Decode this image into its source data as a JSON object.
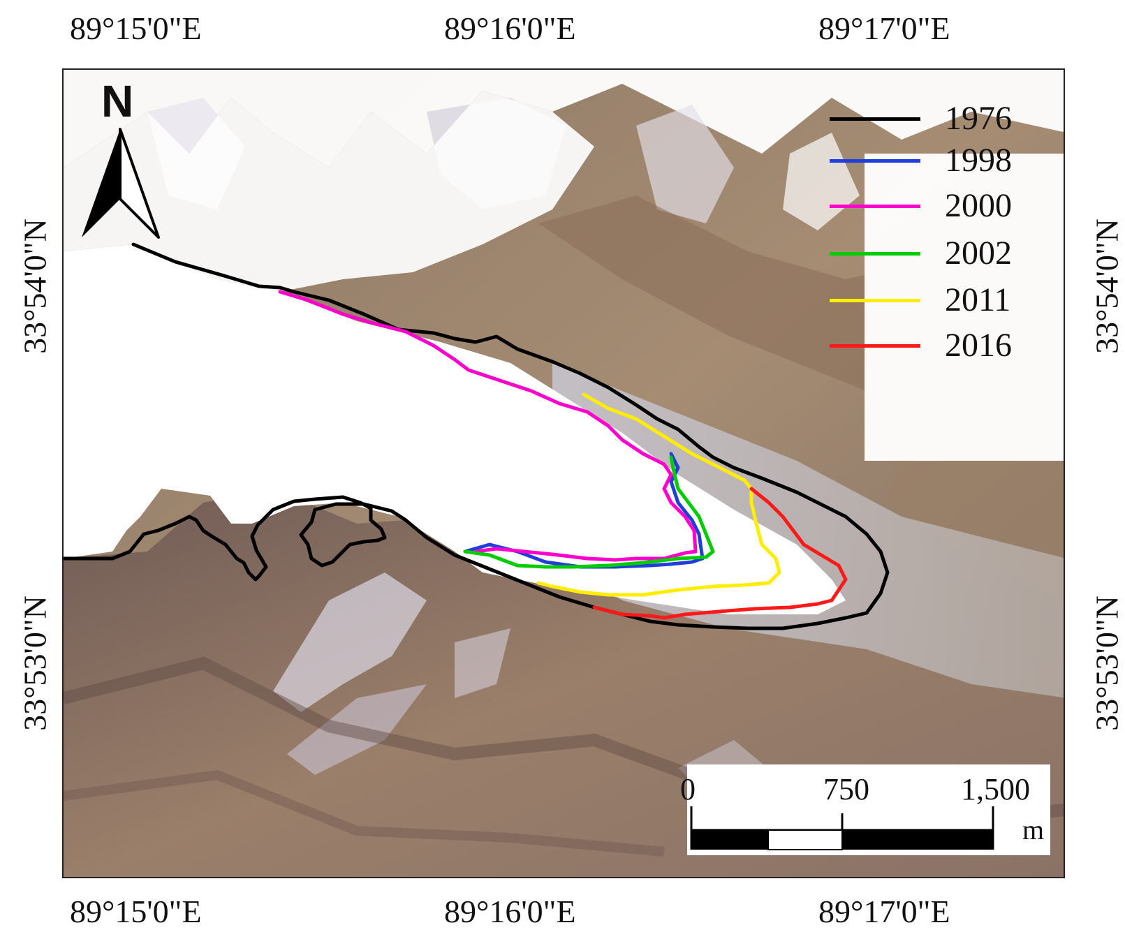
{
  "coordinates": {
    "top_longitudes": [
      "89°15'0\"E",
      "89°16'0\"E",
      "89°17'0\"E"
    ],
    "bottom_longitudes": [
      "89°15'0\"E",
      "89°16'0\"E",
      "89°17'0\"E"
    ],
    "left_latitudes": [
      "33°54'0\"N",
      "33°53'0\"N"
    ],
    "right_latitudes": [
      "33°54'0\"N",
      "33°53'0\"N"
    ]
  },
  "north_arrow": {
    "label": "N",
    "icon": "north-arrow-icon"
  },
  "legend": {
    "items": [
      {
        "label": "1976",
        "color": "#000000"
      },
      {
        "label": "1998",
        "color": "#1f3fd8"
      },
      {
        "label": "2000",
        "color": "#ff00cc"
      },
      {
        "label": "2002",
        "color": "#00cc00"
      },
      {
        "label": "2011",
        "color": "#ffee00"
      },
      {
        "label": "2016",
        "color": "#ff1a1a"
      }
    ]
  },
  "scale_bar": {
    "ticks": [
      "0",
      "750",
      "1,500"
    ],
    "unit": "m"
  }
}
